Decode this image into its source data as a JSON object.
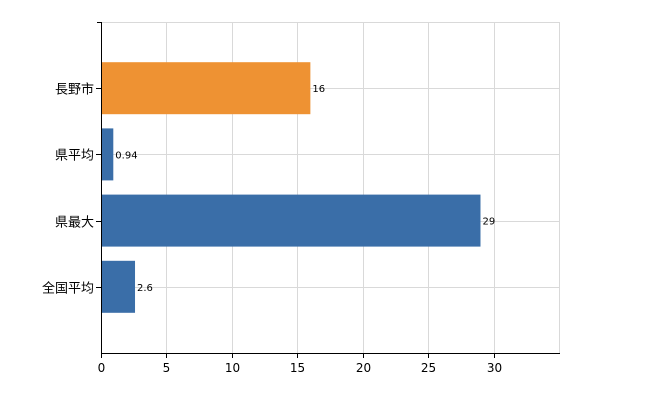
{
  "chart_data": {
    "type": "bar",
    "orientation": "horizontal",
    "title": "",
    "xlabel": "",
    "ylabel": "",
    "categories": [
      "長野市",
      "県平均",
      "県最大",
      "全国平均"
    ],
    "values": [
      16,
      0.94,
      29,
      2.6
    ],
    "value_labels": [
      "16",
      "0.94",
      "29",
      "2.6"
    ],
    "bar_colors": [
      "#ee9233",
      "#3a6ea8",
      "#3a6ea8",
      "#3a6ea8"
    ],
    "xlim": [
      0,
      35
    ],
    "x_ticks": [
      0,
      5,
      10,
      15,
      20,
      25,
      30
    ],
    "x_tick_labels": [
      "0",
      "5",
      "10",
      "15",
      "20",
      "25",
      "30"
    ],
    "grid": true,
    "legend": "none"
  }
}
